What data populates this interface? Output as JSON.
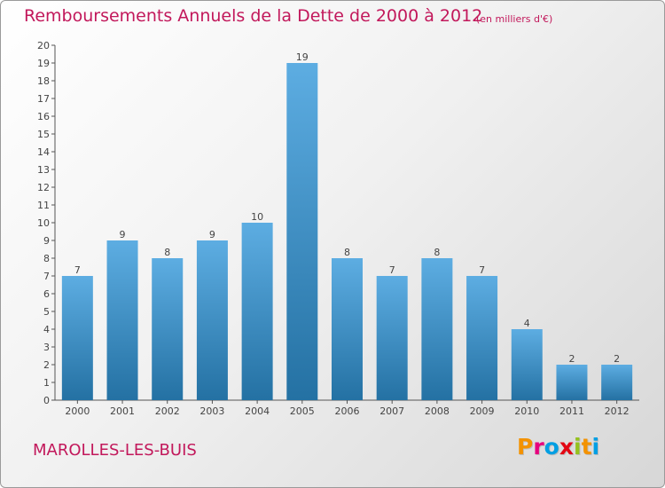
{
  "header": {
    "title": "Remboursements Annuels de la Dette de 2000 à 2012",
    "subtitle": "(en milliers d'€)"
  },
  "footer": {
    "commune": "MAROLLES-LES-BUIS",
    "logo_letters": [
      "P",
      "r",
      "o",
      "x",
      "i",
      "t",
      "i"
    ],
    "logo_colors": [
      "#f39200",
      "#e6007e",
      "#009fe3",
      "#e30613",
      "#95c11f",
      "#f39200",
      "#009fe3"
    ]
  },
  "chart_data": {
    "type": "bar",
    "title": "Remboursements Annuels de la Dette de 2000 à 2012",
    "subtitle": "(en milliers d'€)",
    "xlabel": "",
    "ylabel": "",
    "categories": [
      "2000",
      "2001",
      "2002",
      "2003",
      "2004",
      "2005",
      "2006",
      "2007",
      "2008",
      "2009",
      "2010",
      "2011",
      "2012"
    ],
    "values": [
      7,
      9,
      8,
      9,
      10,
      19,
      8,
      7,
      8,
      7,
      4,
      2,
      2
    ],
    "data_labels": [
      "7",
      "9",
      "8",
      "9",
      "10",
      "19",
      "8",
      "7",
      "8",
      "7",
      "4",
      "2",
      "2"
    ],
    "ylim": [
      0,
      20
    ],
    "yticks": [
      0,
      1,
      2,
      3,
      4,
      5,
      6,
      7,
      8,
      9,
      10,
      11,
      12,
      13,
      14,
      15,
      16,
      17,
      18,
      19,
      20
    ],
    "grid": false,
    "legend": "none",
    "colors": {
      "bar_top": "#5dade2",
      "bar_bottom": "#2471a3",
      "axis": "#555555"
    }
  }
}
